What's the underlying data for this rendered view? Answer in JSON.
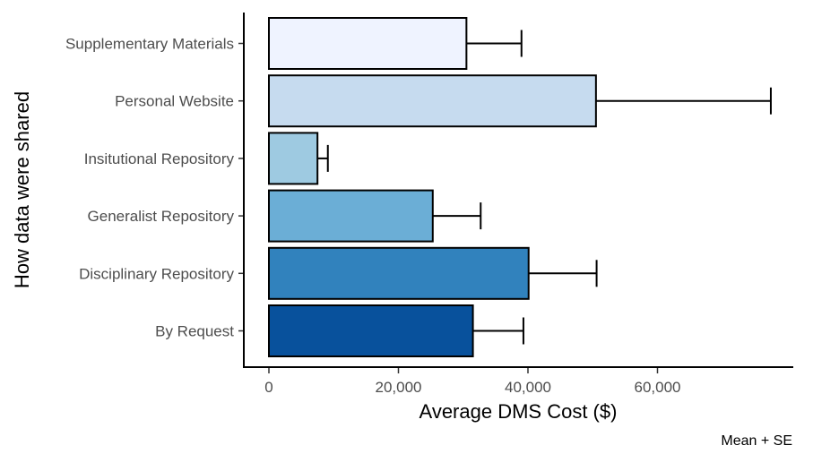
{
  "chart_data": {
    "type": "bar",
    "orientation": "horizontal",
    "categories": [
      "Supplementary Materials",
      "Personal Website",
      "Insitutional Repository",
      "Generalist Repository",
      "Disciplinary Repository",
      "By Request"
    ],
    "values": [
      30500,
      50500,
      7500,
      25300,
      40100,
      31500
    ],
    "error_upper": [
      39000,
      77500,
      9100,
      32700,
      50600,
      39300
    ],
    "colors": [
      "#eff3ff",
      "#c6dbef",
      "#9ecae1",
      "#6baed6",
      "#3182bd",
      "#08519c"
    ],
    "xlabel": "Average DMS Cost ($)",
    "ylabel": "How data were shared",
    "xticks": [
      0,
      20000,
      40000,
      60000
    ],
    "xtick_labels": [
      "0",
      "20,000",
      "40,000",
      "60,000"
    ],
    "xlim": [
      -3900,
      81000
    ],
    "caption": "Mean + SE",
    "grid": false
  }
}
